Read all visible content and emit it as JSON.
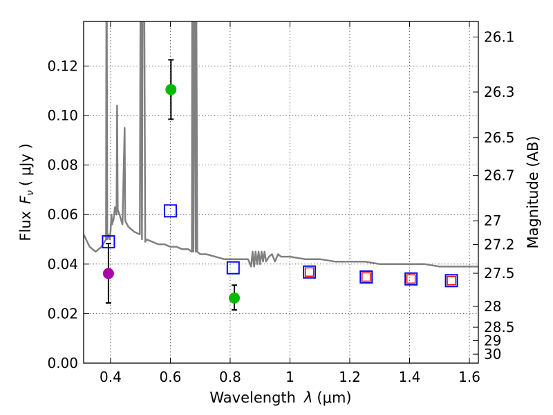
{
  "chart_data": {
    "type": "scatter",
    "xlabel_prefix": "Wavelength",
    "xlabel_symbol": "λ",
    "xlabel_unit": "(μm)",
    "ylabel_prefix": "Flux",
    "ylabel_symbol": "F",
    "ylabel_subscript": "ν",
    "ylabel_unit": "( μJy )",
    "y2label": "Magnitude (AB)",
    "xlim": [
      0.31,
      1.63
    ],
    "ylim": [
      0.0,
      0.138
    ],
    "grid": true,
    "x_ticks": [
      {
        "value": 0.4,
        "label": "0.4"
      },
      {
        "value": 0.6,
        "label": "0.6"
      },
      {
        "value": 0.8,
        "label": "0.8"
      },
      {
        "value": 1.0,
        "label": "1"
      },
      {
        "value": 1.2,
        "label": "1.2"
      },
      {
        "value": 1.4,
        "label": "1.4"
      },
      {
        "value": 1.6,
        "label": "1.6"
      }
    ],
    "y_ticks": [
      {
        "value": 0.0,
        "label": "0.00"
      },
      {
        "value": 0.02,
        "label": "0.02"
      },
      {
        "value": 0.04,
        "label": "0.04"
      },
      {
        "value": 0.06,
        "label": "0.06"
      },
      {
        "value": 0.08,
        "label": "0.08"
      },
      {
        "value": 0.1,
        "label": "0.10"
      },
      {
        "value": 0.12,
        "label": "0.12"
      }
    ],
    "y2_ticks": [
      {
        "flux": 0.1317,
        "label": "26.1"
      },
      {
        "flux": 0.1095,
        "label": "26.3"
      },
      {
        "flux": 0.0911,
        "label": "26.5"
      },
      {
        "flux": 0.0758,
        "label": "26.7"
      },
      {
        "flux": 0.0575,
        "label": "27"
      },
      {
        "flux": 0.0479,
        "label": "27.2"
      },
      {
        "flux": 0.0363,
        "label": "27.5"
      },
      {
        "flux": 0.0229,
        "label": "28"
      },
      {
        "flux": 0.0145,
        "label": "28.5"
      },
      {
        "flux": 0.0091,
        "label": "29"
      },
      {
        "flux": 0.0036,
        "label": "30"
      }
    ],
    "series": [
      {
        "name": "model spectrum",
        "kind": "line",
        "color": "#808080",
        "x": [
          0.31,
          0.33,
          0.35,
          0.37,
          0.385,
          0.386,
          0.3875,
          0.389,
          0.392,
          0.397,
          0.4,
          0.403,
          0.405,
          0.41,
          0.415,
          0.42,
          0.422,
          0.424,
          0.43,
          0.44,
          0.447,
          0.449,
          0.451,
          0.46,
          0.48,
          0.498,
          0.5,
          0.502,
          0.505,
          0.507,
          0.509,
          0.511,
          0.513,
          0.516,
          0.52,
          0.54,
          0.56,
          0.58,
          0.6,
          0.62,
          0.64,
          0.66,
          0.672,
          0.673,
          0.675,
          0.677,
          0.68,
          0.683,
          0.685,
          0.687,
          0.69,
          0.7,
          0.72,
          0.75,
          0.78,
          0.8,
          0.82,
          0.84,
          0.86,
          0.87,
          0.875,
          0.88,
          0.885,
          0.89,
          0.895,
          0.9,
          0.905,
          0.91,
          0.915,
          0.92,
          0.93,
          0.94,
          0.95,
          0.96,
          0.97,
          0.98,
          1.0,
          1.05,
          1.1,
          1.15,
          1.2,
          1.25,
          1.3,
          1.35,
          1.4,
          1.45,
          1.5,
          1.55,
          1.6,
          1.63
        ],
        "y": [
          0.052,
          0.047,
          0.045,
          0.047,
          0.05,
          0.14,
          0.14,
          0.05,
          0.052,
          0.05,
          0.053,
          0.06,
          0.056,
          0.058,
          0.063,
          0.06,
          0.104,
          0.062,
          0.06,
          0.056,
          0.095,
          0.058,
          0.057,
          0.055,
          0.053,
          0.052,
          0.14,
          0.14,
          0.05,
          0.14,
          0.14,
          0.14,
          0.14,
          0.049,
          0.05,
          0.049,
          0.048,
          0.048,
          0.047,
          0.047,
          0.046,
          0.046,
          0.045,
          0.14,
          0.14,
          0.045,
          0.14,
          0.14,
          0.045,
          0.14,
          0.045,
          0.044,
          0.044,
          0.043,
          0.042,
          0.042,
          0.042,
          0.042,
          0.042,
          0.039,
          0.045,
          0.039,
          0.045,
          0.04,
          0.045,
          0.04,
          0.045,
          0.041,
          0.045,
          0.041,
          0.043,
          0.044,
          0.041,
          0.044,
          0.043,
          0.043,
          0.043,
          0.042,
          0.042,
          0.041,
          0.041,
          0.041,
          0.04,
          0.04,
          0.04,
          0.04,
          0.039,
          0.039,
          0.039,
          0.039
        ]
      },
      {
        "name": "observed (green)",
        "kind": "points",
        "color": "#00bb00",
        "points": [
          {
            "x": 0.602,
            "y": 0.1105,
            "ylo": 0.0985,
            "yhi": 0.1225
          },
          {
            "x": 0.814,
            "y": 0.0263,
            "ylo": 0.0215,
            "yhi": 0.0315
          }
        ]
      },
      {
        "name": "observed (magenta)",
        "kind": "points",
        "color": "#aa00aa",
        "points": [
          {
            "x": 0.393,
            "y": 0.0362,
            "ylo": 0.0243,
            "yhi": 0.0483
          }
        ]
      },
      {
        "name": "model photometry (blue squares)",
        "kind": "squares",
        "color": "#0000ff",
        "points": [
          {
            "x": 0.393,
            "y": 0.049
          },
          {
            "x": 0.6,
            "y": 0.0615
          },
          {
            "x": 0.81,
            "y": 0.0385
          },
          {
            "x": 1.065,
            "y": 0.0368
          },
          {
            "x": 1.255,
            "y": 0.0348
          },
          {
            "x": 1.405,
            "y": 0.034
          },
          {
            "x": 1.54,
            "y": 0.0333
          }
        ]
      },
      {
        "name": "model photometry (red squares)",
        "kind": "small-squares",
        "color": "#ff0000",
        "points": [
          {
            "x": 1.065,
            "y": 0.0368
          },
          {
            "x": 1.255,
            "y": 0.0348
          },
          {
            "x": 1.405,
            "y": 0.034
          },
          {
            "x": 1.54,
            "y": 0.0333
          }
        ]
      }
    ]
  }
}
